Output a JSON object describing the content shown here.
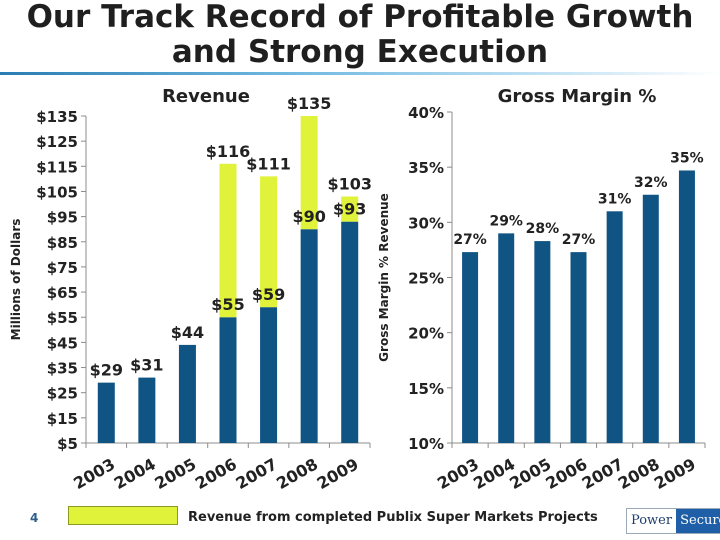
{
  "slide": {
    "title_line1": "Our Track Record of Profitable Growth",
    "title_line2": "and Strong Execution",
    "page_number": "4",
    "legend_label": "Revenue from completed Publix Super Markets Projects",
    "logo_part1": "Power",
    "logo_part2": "Secure"
  },
  "colors": {
    "base": "#0f5483",
    "publix": "#e0f23a",
    "axis": "#8c8c8c"
  },
  "chart_data": [
    {
      "type": "bar",
      "title": "Revenue",
      "ylabel": "Millions of Dollars",
      "categories": [
        "2003",
        "2004",
        "2005",
        "2006",
        "2007",
        "2008",
        "2009"
      ],
      "series": [
        {
          "values": [
            29,
            31,
            44,
            55,
            59,
            90,
            93
          ]
        },
        {
          "name": "Revenue from completed Publix Super Markets Projects",
          "values": [
            0,
            0,
            0,
            61,
            52,
            45,
            10
          ]
        }
      ],
      "base_labels": [
        "$29",
        "$31",
        "$44",
        "$55",
        "$59",
        "$90",
        "$93"
      ],
      "total_labels": [
        "",
        "",
        "",
        "$116",
        "$111",
        "$135",
        "$103"
      ],
      "ylim": [
        5,
        135
      ],
      "yticks": [
        5,
        15,
        25,
        35,
        45,
        55,
        65,
        75,
        85,
        95,
        105,
        115,
        125,
        135
      ],
      "ytick_labels": [
        "$5",
        "$15",
        "$25",
        "$35",
        "$45",
        "$55",
        "$65",
        "$75",
        "$85",
        "$95",
        "$105",
        "$115",
        "$125",
        "$135"
      ],
      "stacked": true,
      "grid": false
    },
    {
      "type": "bar",
      "title": "Gross Margin %",
      "ylabel": "Gross Margin % Revenue",
      "categories": [
        "2003",
        "2004",
        "2005",
        "2006",
        "2007",
        "2008",
        "2009"
      ],
      "values": [
        27.3,
        29.0,
        28.3,
        27.3,
        31.0,
        32.5,
        34.7
      ],
      "labels": [
        "27%",
        "29%",
        "28%",
        "27%",
        "31%",
        "32%",
        "35%"
      ],
      "ylim": [
        10,
        40
      ],
      "yticks": [
        10,
        15,
        20,
        25,
        30,
        35,
        40
      ],
      "ytick_labels": [
        "10%",
        "15%",
        "20%",
        "25%",
        "30%",
        "35%",
        "40%"
      ],
      "grid": false
    }
  ]
}
